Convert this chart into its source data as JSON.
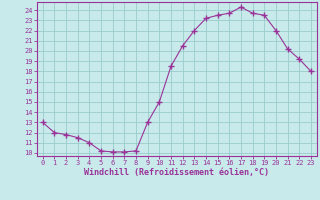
{
  "x": [
    0,
    1,
    2,
    3,
    4,
    5,
    6,
    7,
    8,
    9,
    10,
    11,
    12,
    13,
    14,
    15,
    16,
    17,
    18,
    19,
    20,
    21,
    22,
    23
  ],
  "y": [
    13,
    12,
    11.8,
    11.5,
    11,
    10.2,
    10.1,
    10.1,
    10.2,
    13,
    15,
    18.5,
    20.5,
    22,
    23.2,
    23.5,
    23.7,
    24.3,
    23.7,
    23.5,
    22,
    20.2,
    19.2,
    18
  ],
  "line_color": "#993399",
  "marker": "+",
  "bg_color": "#c8eaea",
  "grid_color": "#99cccc",
  "xlabel": "Windchill (Refroidissement éolien,°C)",
  "ylabel_ticks": [
    10,
    11,
    12,
    13,
    14,
    15,
    16,
    17,
    18,
    19,
    20,
    21,
    22,
    23,
    24
  ],
  "xlim": [
    -0.5,
    23.5
  ],
  "ylim": [
    9.7,
    24.8
  ],
  "axis_color": "#993399",
  "tick_color": "#993399",
  "font_color": "#993399",
  "tick_fontsize": 5.0,
  "xlabel_fontsize": 6.0
}
